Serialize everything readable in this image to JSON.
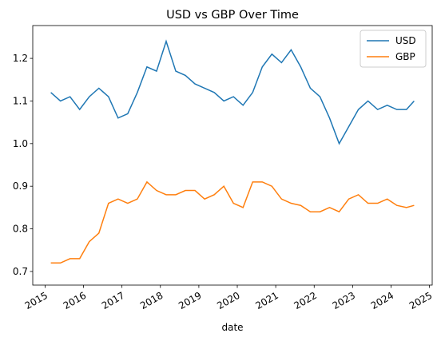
{
  "chart_data": {
    "type": "line",
    "title": "USD vs GBP Over Time",
    "x_label": "date",
    "x": [
      2015.15,
      2015.4,
      2015.65,
      2015.9,
      2016.15,
      2016.4,
      2016.65,
      2016.9,
      2017.15,
      2017.4,
      2017.65,
      2017.9,
      2018.15,
      2018.4,
      2018.65,
      2018.9,
      2019.15,
      2019.4,
      2019.65,
      2019.9,
      2020.15,
      2020.4,
      2020.65,
      2020.9,
      2021.15,
      2021.4,
      2021.65,
      2021.9,
      2022.15,
      2022.4,
      2022.65,
      2022.9,
      2023.15,
      2023.4,
      2023.65,
      2023.9,
      2024.15,
      2024.4,
      2024.6
    ],
    "series": [
      {
        "name": "USD",
        "color": "#1f77b4",
        "values": [
          1.12,
          1.1,
          1.11,
          1.08,
          1.11,
          1.13,
          1.11,
          1.06,
          1.07,
          1.12,
          1.18,
          1.17,
          1.24,
          1.17,
          1.16,
          1.14,
          1.13,
          1.12,
          1.1,
          1.11,
          1.09,
          1.12,
          1.18,
          1.21,
          1.19,
          1.22,
          1.18,
          1.13,
          1.11,
          1.06,
          1.0,
          1.04,
          1.08,
          1.1,
          1.08,
          1.09,
          1.08,
          1.08,
          1.1
        ]
      },
      {
        "name": "GBP",
        "color": "#ff7f0e",
        "values": [
          0.72,
          0.72,
          0.73,
          0.73,
          0.77,
          0.79,
          0.86,
          0.87,
          0.86,
          0.87,
          0.91,
          0.89,
          0.88,
          0.88,
          0.89,
          0.89,
          0.87,
          0.88,
          0.9,
          0.86,
          0.85,
          0.91,
          0.91,
          0.9,
          0.87,
          0.86,
          0.855,
          0.84,
          0.84,
          0.85,
          0.84,
          0.87,
          0.88,
          0.86,
          0.86,
          0.87,
          0.855,
          0.85,
          0.855
        ]
      }
    ],
    "xlim": [
      2014.68,
      2025.07
    ],
    "xticks": [
      2015,
      2016,
      2017,
      2018,
      2019,
      2020,
      2021,
      2022,
      2023,
      2024,
      2025
    ],
    "ylim": [
      0.668,
      1.277
    ],
    "yticks": [
      0.7,
      0.8,
      0.9,
      {
        "value": 1,
        "label": "1.0"
      },
      1.1,
      1.2
    ],
    "legend": "upper right",
    "grid": false
  }
}
